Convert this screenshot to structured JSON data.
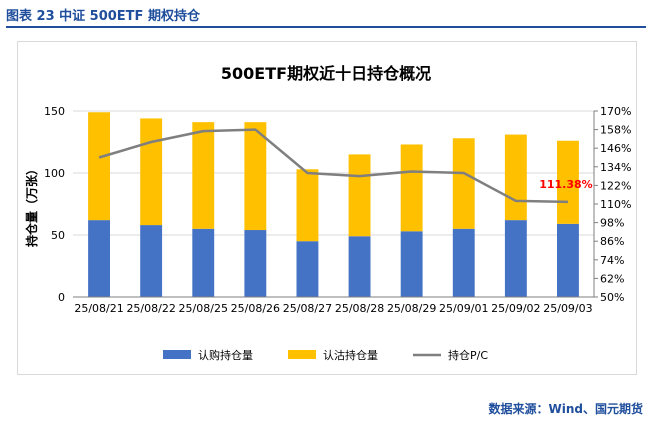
{
  "figure_label": "图表 23  中证 500ETF 期权持仓",
  "source_text": "数据来源：Wind、国元期货",
  "chart_data": {
    "type": "bar",
    "title": "500ETF期权近十日持仓概况",
    "ylabel": "持仓量（万张）",
    "categories": [
      "25/08/21",
      "25/08/22",
      "25/08/25",
      "25/08/26",
      "25/08/27",
      "25/08/28",
      "25/08/29",
      "25/09/01",
      "25/09/02",
      "25/09/03"
    ],
    "series": [
      {
        "name": "认购持仓量",
        "type": "bar",
        "stack": "oi",
        "color": "#4472c4",
        "values": [
          62,
          58,
          55,
          54,
          45,
          49,
          53,
          55,
          62,
          59
        ]
      },
      {
        "name": "认沽持仓量",
        "type": "bar",
        "stack": "oi",
        "color": "#ffc000",
        "values": [
          87,
          86,
          86,
          87,
          58,
          66,
          70,
          73,
          69,
          67
        ]
      },
      {
        "name": "持仓P/C",
        "type": "line",
        "axis": "right",
        "color": "#7f7f7f",
        "values": [
          1.4,
          1.5,
          1.57,
          1.58,
          1.3,
          1.28,
          1.31,
          1.3,
          1.12,
          1.1138
        ]
      }
    ],
    "ylim": [
      0,
      150
    ],
    "y_ticks": [
      "0",
      "50",
      "100",
      "150"
    ],
    "y2lim": [
      0.5,
      1.7
    ],
    "y2_ticks": [
      "50%",
      "62%",
      "74%",
      "86%",
      "98%",
      "110%",
      "122%",
      "134%",
      "146%",
      "158%",
      "170%"
    ],
    "annotation": {
      "text": "111.38%",
      "series": "持仓P/C",
      "index": 9,
      "color": "#ff0000"
    },
    "legend_position": "bottom"
  }
}
